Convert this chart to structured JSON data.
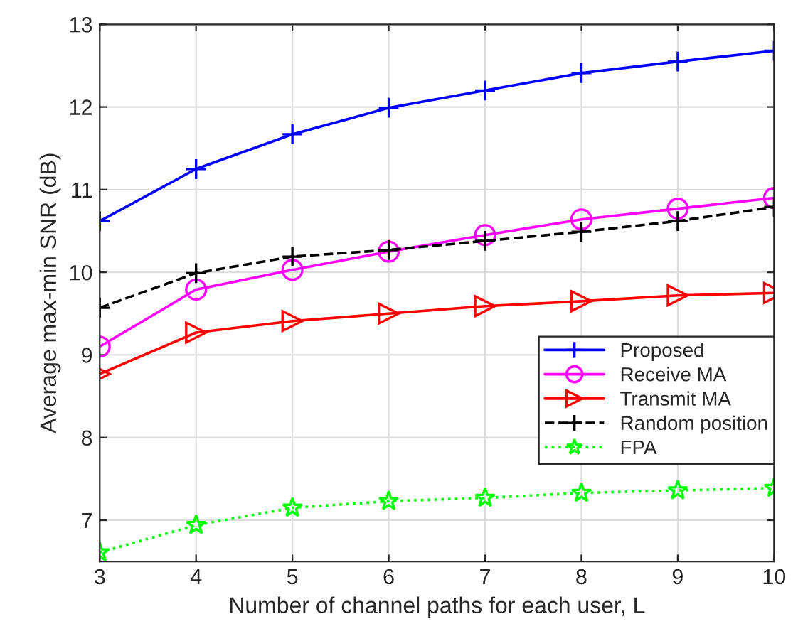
{
  "chart_data": {
    "type": "line",
    "xlabel": "Number of channel paths for each user, L",
    "ylabel": "Average max-min SNR (dB)",
    "x": [
      3,
      4,
      5,
      6,
      7,
      8,
      9,
      10
    ],
    "series": [
      {
        "name": "Proposed",
        "color": "#0000ff",
        "marker": "cross",
        "line_style": "solid",
        "values": [
          10.62,
          11.25,
          11.67,
          11.99,
          12.2,
          12.41,
          12.55,
          12.68
        ]
      },
      {
        "name": "Receive MA",
        "color": "#ff00ff",
        "marker": "circle",
        "line_style": "solid",
        "values": [
          9.1,
          9.79,
          10.03,
          10.25,
          10.45,
          10.64,
          10.77,
          10.9
        ]
      },
      {
        "name": "Transmit MA",
        "color": "#ff0000",
        "marker": "triangle",
        "line_style": "solid",
        "values": [
          8.77,
          9.27,
          9.41,
          9.5,
          9.59,
          9.65,
          9.72,
          9.75
        ]
      },
      {
        "name": "Random position",
        "color": "#000000",
        "marker": "cross",
        "line_style": "dashed",
        "values": [
          9.57,
          9.99,
          10.19,
          10.27,
          10.38,
          10.49,
          10.62,
          10.79
        ]
      },
      {
        "name": "FPA",
        "color": "#00ff00",
        "marker": "star",
        "line_style": "dotted",
        "values": [
          6.61,
          6.94,
          7.15,
          7.23,
          7.27,
          7.33,
          7.36,
          7.39
        ]
      }
    ],
    "xlim": [
      3,
      10
    ],
    "xticks": [
      3,
      4,
      5,
      6,
      7,
      8,
      9,
      10
    ],
    "ylim": [
      6.5,
      13
    ],
    "yticks": [
      7,
      8,
      9,
      10,
      11,
      12,
      13
    ],
    "grid": true,
    "legend": "right"
  }
}
